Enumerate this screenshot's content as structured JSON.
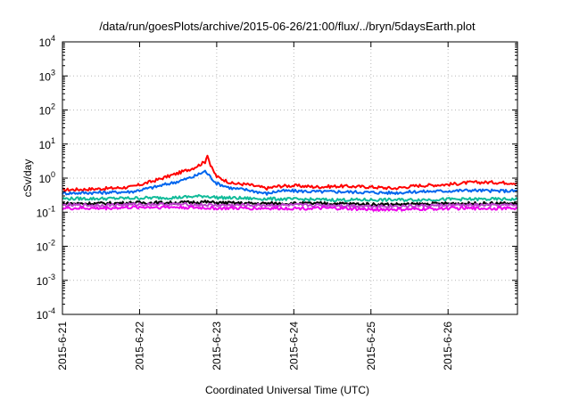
{
  "chart_data": {
    "type": "line",
    "title": "/data/run/goesPlots/archive/2015-06-26/21:00/flux/../bryn/5daysEarth.plot",
    "xlabel": "Coordinated Universal Time (UTC)",
    "ylabel": "cSv/day",
    "y_scale": "log",
    "ylim": [
      0.0001,
      10000
    ],
    "y_ticks": [
      {
        "base": "10",
        "exp": "4",
        "value": 10000
      },
      {
        "base": "10",
        "exp": "3",
        "value": 1000
      },
      {
        "base": "10",
        "exp": "2",
        "value": 100
      },
      {
        "base": "10",
        "exp": "1",
        "value": 10
      },
      {
        "base": "10",
        "exp": "0",
        "value": 1
      },
      {
        "base": "10",
        "exp": "-1",
        "value": 0.1
      },
      {
        "base": "10",
        "exp": "-2",
        "value": 0.01
      },
      {
        "base": "10",
        "exp": "-3",
        "value": 0.001
      },
      {
        "base": "10",
        "exp": "-4",
        "value": 0.0001
      }
    ],
    "x_ticks": [
      "2015-6-21",
      "2015-6-22",
      "2015-6-23",
      "2015-6-24",
      "2015-6-25",
      "2015-6-26"
    ],
    "xlim_days": [
      0,
      5.9
    ],
    "grid": true,
    "series": [
      {
        "color": "#ff0000",
        "points": [
          [
            0,
            0.45
          ],
          [
            0.3,
            0.47
          ],
          [
            0.6,
            0.5
          ],
          [
            0.9,
            0.55
          ],
          [
            1.2,
            0.85
          ],
          [
            1.5,
            1.4
          ],
          [
            1.7,
            2.0
          ],
          [
            1.85,
            3.0
          ],
          [
            1.88,
            5.0
          ],
          [
            1.92,
            2.3
          ],
          [
            2.0,
            1.1
          ],
          [
            2.2,
            0.7
          ],
          [
            2.4,
            0.65
          ],
          [
            2.65,
            0.5
          ],
          [
            2.8,
            0.58
          ],
          [
            3.0,
            0.6
          ],
          [
            3.3,
            0.55
          ],
          [
            3.6,
            0.58
          ],
          [
            4.0,
            0.55
          ],
          [
            4.3,
            0.5
          ],
          [
            4.6,
            0.6
          ],
          [
            5.0,
            0.65
          ],
          [
            5.3,
            0.75
          ],
          [
            5.6,
            0.75
          ],
          [
            5.9,
            0.72
          ]
        ]
      },
      {
        "color": "#0066ee",
        "points": [
          [
            0,
            0.36
          ],
          [
            0.3,
            0.37
          ],
          [
            0.6,
            0.38
          ],
          [
            0.9,
            0.4
          ],
          [
            1.2,
            0.55
          ],
          [
            1.5,
            0.8
          ],
          [
            1.7,
            1.1
          ],
          [
            1.85,
            1.6
          ],
          [
            1.9,
            1.2
          ],
          [
            2.0,
            0.7
          ],
          [
            2.2,
            0.5
          ],
          [
            2.4,
            0.45
          ],
          [
            2.65,
            0.35
          ],
          [
            2.8,
            0.42
          ],
          [
            3.0,
            0.42
          ],
          [
            3.3,
            0.4
          ],
          [
            3.6,
            0.4
          ],
          [
            4.0,
            0.38
          ],
          [
            4.3,
            0.37
          ],
          [
            4.6,
            0.4
          ],
          [
            5.0,
            0.42
          ],
          [
            5.3,
            0.44
          ],
          [
            5.6,
            0.42
          ],
          [
            5.9,
            0.42
          ]
        ]
      },
      {
        "color": "#11bb99",
        "points": [
          [
            0,
            0.25
          ],
          [
            0.5,
            0.25
          ],
          [
            1.0,
            0.26
          ],
          [
            1.5,
            0.27
          ],
          [
            1.85,
            0.3
          ],
          [
            2.0,
            0.27
          ],
          [
            2.5,
            0.25
          ],
          [
            3.0,
            0.24
          ],
          [
            3.5,
            0.23
          ],
          [
            4.0,
            0.23
          ],
          [
            4.5,
            0.23
          ],
          [
            5.0,
            0.24
          ],
          [
            5.5,
            0.24
          ],
          [
            5.9,
            0.24
          ]
        ]
      },
      {
        "color": "#000000",
        "points": [
          [
            0,
            0.18
          ],
          [
            0.5,
            0.18
          ],
          [
            1.0,
            0.19
          ],
          [
            1.5,
            0.19
          ],
          [
            1.85,
            0.2
          ],
          [
            2.0,
            0.19
          ],
          [
            2.5,
            0.18
          ],
          [
            3.0,
            0.18
          ],
          [
            3.5,
            0.18
          ],
          [
            4.0,
            0.17
          ],
          [
            4.5,
            0.17
          ],
          [
            5.0,
            0.18
          ],
          [
            5.5,
            0.18
          ],
          [
            5.9,
            0.18
          ]
        ]
      },
      {
        "color": "#bb44cc",
        "points": [
          [
            0,
            0.16
          ],
          [
            0.5,
            0.16
          ],
          [
            1.0,
            0.17
          ],
          [
            1.5,
            0.17
          ],
          [
            2.0,
            0.16
          ],
          [
            2.5,
            0.16
          ],
          [
            3.0,
            0.16
          ],
          [
            3.5,
            0.16
          ],
          [
            4.0,
            0.15
          ],
          [
            4.5,
            0.15
          ],
          [
            5.0,
            0.16
          ],
          [
            5.5,
            0.16
          ],
          [
            5.9,
            0.16
          ]
        ]
      },
      {
        "color": "#ee00ee",
        "points": [
          [
            0,
            0.13
          ],
          [
            0.5,
            0.13
          ],
          [
            1.0,
            0.14
          ],
          [
            1.5,
            0.14
          ],
          [
            2.0,
            0.13
          ],
          [
            2.5,
            0.13
          ],
          [
            3.0,
            0.13
          ],
          [
            3.5,
            0.13
          ],
          [
            4.0,
            0.12
          ],
          [
            4.5,
            0.12
          ],
          [
            5.0,
            0.13
          ],
          [
            5.5,
            0.13
          ],
          [
            5.9,
            0.13
          ]
        ]
      }
    ]
  }
}
